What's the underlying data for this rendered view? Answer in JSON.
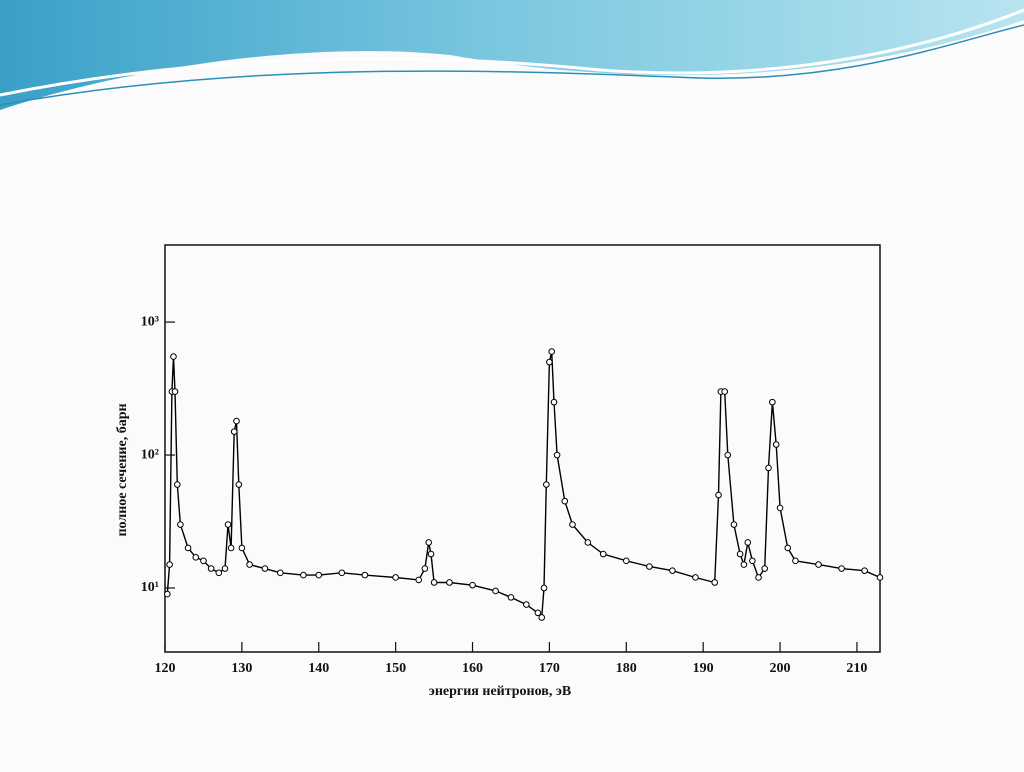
{
  "chart_data": {
    "type": "line",
    "x_label": "энергия нейтронов, эВ",
    "y_label": "полное сечение, барн",
    "color": "#000000",
    "log_y": true,
    "markers": true,
    "x": [
      120.3,
      120.6,
      120.9,
      121.1,
      121.3,
      121.6,
      122,
      123,
      124,
      125,
      126,
      127,
      127.8,
      128.2,
      128.6,
      129,
      129.3,
      129.6,
      130,
      131,
      133,
      135,
      138,
      140,
      143,
      146,
      150,
      153,
      153.8,
      154.3,
      154.6,
      155,
      157,
      160,
      163,
      165,
      167,
      168.5,
      169,
      169.3,
      169.6,
      170,
      170.3,
      170.6,
      171,
      172,
      173,
      175,
      177,
      180,
      183,
      186,
      189,
      191.5,
      192,
      192.3,
      192.8,
      193.2,
      194,
      194.8,
      195.3,
      195.8,
      196.4,
      197.2,
      198,
      198.5,
      199,
      199.5,
      200,
      201,
      202,
      205,
      208,
      211,
      213
    ],
    "values": [
      9,
      15,
      300,
      550,
      300,
      60,
      30,
      20,
      17,
      16,
      14,
      13,
      14,
      30,
      20,
      150,
      180,
      60,
      20,
      15,
      14,
      13,
      12.5,
      12.5,
      13,
      12.5,
      12,
      11.5,
      14,
      22,
      18,
      11,
      11,
      10.5,
      9.5,
      8.5,
      7.5,
      6.5,
      6,
      10,
      60,
      500,
      600,
      250,
      100,
      45,
      30,
      22,
      18,
      16,
      14.5,
      13.5,
      12,
      11,
      50,
      300,
      300,
      100,
      30,
      18,
      15,
      22,
      16,
      12,
      14,
      80,
      250,
      120,
      40,
      20,
      16,
      15,
      14,
      13.5,
      12
    ],
    "xlim": [
      120,
      213
    ],
    "ylim": [
      3.3,
      3800
    ],
    "xticks": [
      120,
      130,
      140,
      150,
      160,
      170,
      180,
      190,
      200,
      210
    ],
    "yticks": [
      {
        "value": 10,
        "label": "10¹"
      },
      {
        "value": 100,
        "label": "10²"
      },
      {
        "value": 1000,
        "label": "10³"
      }
    ]
  }
}
